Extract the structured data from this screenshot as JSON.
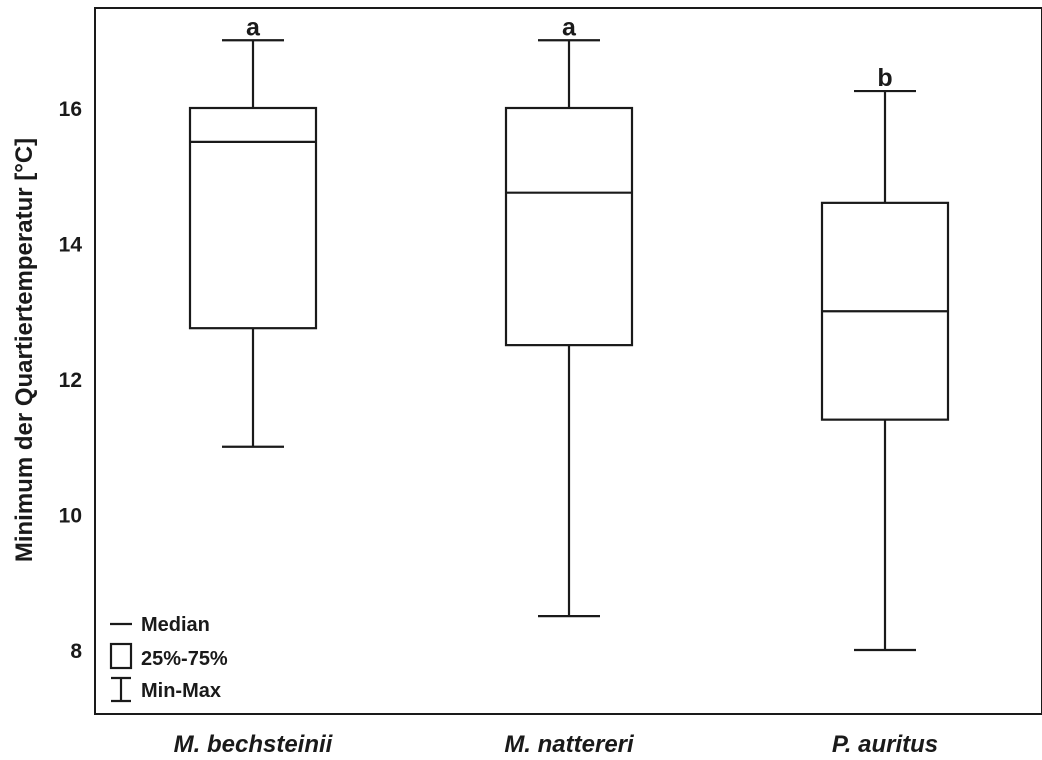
{
  "chart_data": {
    "type": "boxplot",
    "ylabel": "Minimum der Quartiertemperatur [°C]",
    "xlabel": "",
    "yticks": [
      8,
      10,
      12,
      14,
      16
    ],
    "ylim": [
      7,
      17.5
    ],
    "grid": false,
    "categories": [
      "M. bechsteinii",
      "M. nattereri",
      "P. auritus"
    ],
    "boxes": [
      {
        "category": "M. bechsteinii",
        "min": 11.0,
        "q1": 12.75,
        "median": 15.5,
        "q3": 16.0,
        "max": 17.0,
        "significance": "a"
      },
      {
        "category": "M. nattereri",
        "min": 8.5,
        "q1": 12.5,
        "median": 14.75,
        "q3": 16.0,
        "max": 17.0,
        "significance": "a"
      },
      {
        "category": "P. auritus",
        "min": 8.0,
        "q1": 11.4,
        "median": 13.0,
        "q3": 14.6,
        "max": 16.25,
        "significance": "b"
      }
    ],
    "legend": {
      "position": "bottom-left",
      "entries": [
        {
          "symbol": "median-line",
          "label": "Median"
        },
        {
          "symbol": "box",
          "label": "25%-75%"
        },
        {
          "symbol": "whisker",
          "label": "Min-Max"
        }
      ]
    }
  }
}
